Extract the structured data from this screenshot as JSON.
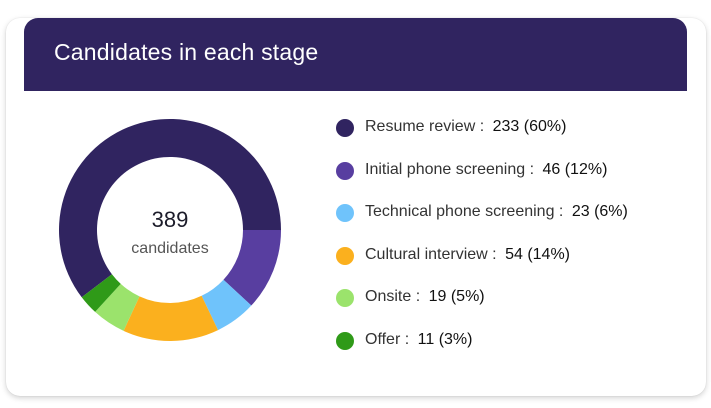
{
  "card": {
    "title": "Candidates in each stage",
    "header_color": "#302460"
  },
  "center": {
    "total": "389",
    "unit": "candidates"
  },
  "legend": [
    {
      "label": "Resume review",
      "sep": ":",
      "value": "233 (60%)",
      "color": "#302460"
    },
    {
      "label": "Initial phone screening",
      "sep": ":",
      "value": "46 (12%)",
      "color": "#583ea0"
    },
    {
      "label": "Technical phone screening",
      "sep": ":",
      "value": "23 (6%)",
      "color": "#6fc3fb"
    },
    {
      "label": "Cultural interview",
      "sep": ":",
      "value": "54 (14%)",
      "color": "#fbb01e"
    },
    {
      "label": "Onsite",
      "sep": ":",
      "value": "19 (5%)",
      "color": "#9be36c"
    },
    {
      "label": "Offer",
      "sep": ":",
      "value": "11 (3%)",
      "color": "#2f9a18"
    }
  ],
  "chart_data": {
    "type": "pie",
    "title": "Candidates in each stage",
    "categories": [
      "Resume review",
      "Initial phone screening",
      "Technical phone screening",
      "Cultural interview",
      "Onsite",
      "Offer"
    ],
    "values": [
      233,
      46,
      23,
      54,
      19,
      11
    ],
    "percentages": [
      60,
      12,
      6,
      14,
      5,
      3
    ],
    "colors": [
      "#302460",
      "#583ea0",
      "#6fc3fb",
      "#fbb01e",
      "#9be36c",
      "#2f9a18"
    ],
    "total": 389,
    "donut": true,
    "legend_position": "right"
  }
}
